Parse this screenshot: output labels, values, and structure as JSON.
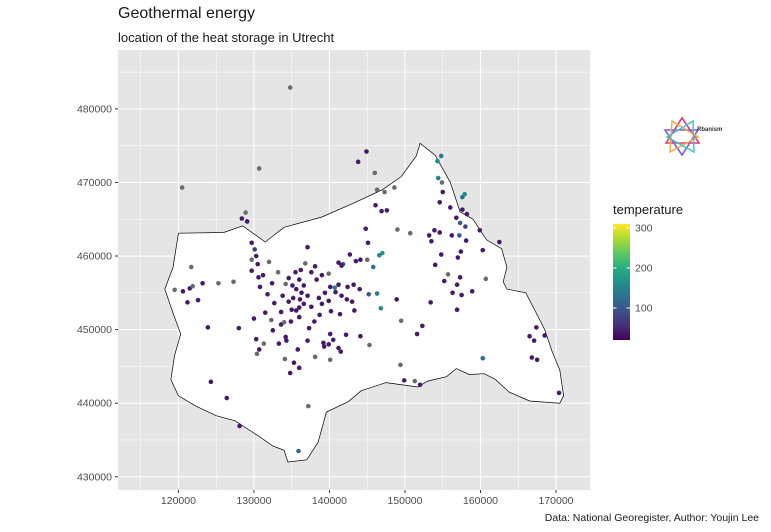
{
  "title": "Geothermal energy",
  "subtitle": "location of the heat storage in Utrecht",
  "caption": "Data: National Georegister, Author: Youjin Lee",
  "logo_text": "Rbanism",
  "colors": {
    "panel": "#e5e5e5",
    "grid": "#ffffff",
    "province_fill": "#ffffff",
    "province_outline": "#000000",
    "missing": "#6b6b6b"
  },
  "chart_data": {
    "type": "scatter",
    "xlim": [
      112000,
      174500
    ],
    "ylim": [
      428200,
      488000
    ],
    "x_ticks": [
      120000,
      130000,
      140000,
      150000,
      160000,
      170000
    ],
    "x_tick_labels": [
      "120000",
      "130000",
      "140000",
      "150000",
      "160000",
      "170000"
    ],
    "y_ticks": [
      430000,
      440000,
      450000,
      460000,
      470000,
      480000
    ],
    "y_tick_labels": [
      "430000",
      "440000",
      "450000",
      "460000",
      "470000",
      "480000"
    ],
    "grid": true,
    "legend": {
      "title": "temperature",
      "position": "right",
      "range": [
        20,
        310
      ],
      "breaks": [
        100,
        200,
        300
      ],
      "labels": [
        "100",
        "200",
        "300"
      ],
      "palette": [
        "#440154",
        "#472d7b",
        "#3b528b",
        "#2c728e",
        "#21918c",
        "#28ae80",
        "#5ec962",
        "#addc30",
        "#fde725"
      ]
    },
    "province_outline": [
      [
        120000,
        463100
      ],
      [
        126000,
        463200
      ],
      [
        128500,
        464100
      ],
      [
        131500,
        461900
      ],
      [
        134000,
        463900
      ],
      [
        139000,
        465300
      ],
      [
        143000,
        467100
      ],
      [
        147000,
        469000
      ],
      [
        149500,
        470800
      ],
      [
        151500,
        473600
      ],
      [
        152000,
        475300
      ],
      [
        154000,
        473700
      ],
      [
        156000,
        470000
      ],
      [
        157300,
        466000
      ],
      [
        159000,
        465000
      ],
      [
        160800,
        462200
      ],
      [
        162800,
        461000
      ],
      [
        163500,
        458500
      ],
      [
        163000,
        456500
      ],
      [
        163500,
        455500
      ],
      [
        166000,
        455000
      ],
      [
        167000,
        453000
      ],
      [
        168500,
        450000
      ],
      [
        169500,
        447000
      ],
      [
        170500,
        444500
      ],
      [
        171000,
        441000
      ],
      [
        170500,
        440000
      ],
      [
        166500,
        440300
      ],
      [
        163800,
        441500
      ],
      [
        162000,
        443200
      ],
      [
        160500,
        444000
      ],
      [
        158500,
        443900
      ],
      [
        156800,
        444700
      ],
      [
        155500,
        443600
      ],
      [
        153000,
        443000
      ],
      [
        151700,
        442200
      ],
      [
        147500,
        442800
      ],
      [
        144200,
        441700
      ],
      [
        142500,
        440200
      ],
      [
        139600,
        438800
      ],
      [
        138500,
        434700
      ],
      [
        137000,
        432300
      ],
      [
        134500,
        432000
      ],
      [
        134000,
        433600
      ],
      [
        132500,
        434200
      ],
      [
        130800,
        435400
      ],
      [
        127500,
        437600
      ],
      [
        125000,
        438300
      ],
      [
        122300,
        439600
      ],
      [
        120000,
        441000
      ],
      [
        119000,
        443200
      ],
      [
        119500,
        446500
      ],
      [
        120300,
        449400
      ],
      [
        119200,
        452500
      ],
      [
        118200,
        455500
      ],
      [
        119300,
        458500
      ],
      [
        120000,
        463100
      ]
    ],
    "points": [
      {
        "x": 134800,
        "y": 482900,
        "t": null
      },
      {
        "x": 137100,
        "y": 461200,
        "t": 40
      },
      {
        "x": 136200,
        "y": 458100,
        "t": 40
      },
      {
        "x": 136000,
        "y": 456800,
        "t": 40
      },
      {
        "x": 135600,
        "y": 455500,
        "t": 40
      },
      {
        "x": 136300,
        "y": 455000,
        "t": 40
      },
      {
        "x": 135200,
        "y": 454300,
        "t": 40
      },
      {
        "x": 134600,
        "y": 453800,
        "t": 40
      },
      {
        "x": 136600,
        "y": 453500,
        "t": 40
      },
      {
        "x": 135600,
        "y": 452600,
        "t": 40
      },
      {
        "x": 136000,
        "y": 451700,
        "t": 40
      },
      {
        "x": 134900,
        "y": 451100,
        "t": 40
      },
      {
        "x": 133600,
        "y": 450700,
        "t": 40
      },
      {
        "x": 134200,
        "y": 449000,
        "t": 40
      },
      {
        "x": 133300,
        "y": 448100,
        "t": 40
      },
      {
        "x": 137300,
        "y": 450200,
        "t": 40
      },
      {
        "x": 138000,
        "y": 451100,
        "t": 40
      },
      {
        "x": 138700,
        "y": 452000,
        "t": 40
      },
      {
        "x": 139400,
        "y": 455000,
        "t": 40
      },
      {
        "x": 140100,
        "y": 455800,
        "t": 40
      },
      {
        "x": 140800,
        "y": 455100,
        "t": 40
      },
      {
        "x": 141600,
        "y": 454600,
        "t": 40
      },
      {
        "x": 142400,
        "y": 455800,
        "t": 40
      },
      {
        "x": 143200,
        "y": 456100,
        "t": 40
      },
      {
        "x": 144000,
        "y": 455500,
        "t": 40
      },
      {
        "x": 141200,
        "y": 459100,
        "t": 40
      },
      {
        "x": 142700,
        "y": 460200,
        "t": 40
      },
      {
        "x": 144100,
        "y": 459500,
        "t": 40
      },
      {
        "x": 132400,
        "y": 456300,
        "t": 40
      },
      {
        "x": 131800,
        "y": 454800,
        "t": 40
      },
      {
        "x": 132700,
        "y": 453600,
        "t": 40
      },
      {
        "x": 131500,
        "y": 452300,
        "t": 40
      },
      {
        "x": 130600,
        "y": 457100,
        "t": 40
      },
      {
        "x": 129700,
        "y": 458000,
        "t": 40
      },
      {
        "x": 130300,
        "y": 460000,
        "t": 40
      },
      {
        "x": 129700,
        "y": 461800,
        "t": 40
      },
      {
        "x": 132000,
        "y": 459200,
        "t": null
      },
      {
        "x": 133200,
        "y": 457800,
        "t": null
      },
      {
        "x": 136800,
        "y": 459000,
        "t": null
      },
      {
        "x": 134200,
        "y": 456200,
        "t": null
      },
      {
        "x": 137600,
        "y": 457800,
        "t": 40
      },
      {
        "x": 138300,
        "y": 456800,
        "t": 40
      },
      {
        "x": 130700,
        "y": 447300,
        "t": 40
      },
      {
        "x": 130300,
        "y": 448700,
        "t": 40
      },
      {
        "x": 131300,
        "y": 448100,
        "t": null
      },
      {
        "x": 130400,
        "y": 446700,
        "t": null
      },
      {
        "x": 134300,
        "y": 448500,
        "t": 40
      },
      {
        "x": 135800,
        "y": 447300,
        "t": 40
      },
      {
        "x": 134100,
        "y": 446000,
        "t": null
      },
      {
        "x": 134800,
        "y": 444100,
        "t": 40
      },
      {
        "x": 136000,
        "y": 444800,
        "t": 40
      },
      {
        "x": 139200,
        "y": 448200,
        "t": 40
      },
      {
        "x": 139900,
        "y": 448000,
        "t": 40
      },
      {
        "x": 140500,
        "y": 448600,
        "t": 40
      },
      {
        "x": 142200,
        "y": 449300,
        "t": 40
      },
      {
        "x": 141200,
        "y": 447500,
        "t": 40
      },
      {
        "x": 144100,
        "y": 449100,
        "t": 40
      },
      {
        "x": 145300,
        "y": 447900,
        "t": null
      },
      {
        "x": 143300,
        "y": 452600,
        "t": 40
      },
      {
        "x": 145200,
        "y": 454800,
        "t": 100
      },
      {
        "x": 146300,
        "y": 454900,
        "t": 140
      },
      {
        "x": 146800,
        "y": 452900,
        "t": 160
      },
      {
        "x": 145000,
        "y": 459500,
        "t": null
      },
      {
        "x": 146600,
        "y": 460100,
        "t": 150
      },
      {
        "x": 147000,
        "y": 460400,
        "t": 170
      },
      {
        "x": 145800,
        "y": 458500,
        "t": 130
      },
      {
        "x": 145100,
        "y": 461800,
        "t": 40
      },
      {
        "x": 144800,
        "y": 463700,
        "t": 40
      },
      {
        "x": 143800,
        "y": 472800,
        "t": 40
      },
      {
        "x": 144900,
        "y": 474200,
        "t": 40
      },
      {
        "x": 146000,
        "y": 471300,
        "t": null
      },
      {
        "x": 146100,
        "y": 466900,
        "t": 40
      },
      {
        "x": 146900,
        "y": 466100,
        "t": 40
      },
      {
        "x": 146300,
        "y": 469000,
        "t": null
      },
      {
        "x": 147300,
        "y": 468700,
        "t": null
      },
      {
        "x": 148600,
        "y": 469300,
        "t": null
      },
      {
        "x": 147600,
        "y": 466200,
        "t": 40
      },
      {
        "x": 149000,
        "y": 463600,
        "t": null
      },
      {
        "x": 150700,
        "y": 463100,
        "t": null
      },
      {
        "x": 148900,
        "y": 454100,
        "t": 40
      },
      {
        "x": 149500,
        "y": 451200,
        "t": null
      },
      {
        "x": 151600,
        "y": 449400,
        "t": 40
      },
      {
        "x": 152300,
        "y": 450500,
        "t": 40
      },
      {
        "x": 153400,
        "y": 453700,
        "t": 40
      },
      {
        "x": 151300,
        "y": 443000,
        "t": null
      },
      {
        "x": 152000,
        "y": 442500,
        "t": 40
      },
      {
        "x": 149400,
        "y": 445200,
        "t": null
      },
      {
        "x": 149900,
        "y": 443100,
        "t": 40
      },
      {
        "x": 153200,
        "y": 462800,
        "t": 40
      },
      {
        "x": 153900,
        "y": 463500,
        "t": 40
      },
      {
        "x": 154600,
        "y": 463200,
        "t": 40
      },
      {
        "x": 154800,
        "y": 460200,
        "t": 40
      },
      {
        "x": 154000,
        "y": 458800,
        "t": 40
      },
      {
        "x": 153500,
        "y": 462000,
        "t": 40
      },
      {
        "x": 154600,
        "y": 467300,
        "t": 40
      },
      {
        "x": 155000,
        "y": 468700,
        "t": 40
      },
      {
        "x": 154400,
        "y": 470600,
        "t": 150
      },
      {
        "x": 154800,
        "y": 473600,
        "t": 140
      },
      {
        "x": 154300,
        "y": 472900,
        "t": 160
      },
      {
        "x": 154900,
        "y": 470000,
        "t": null
      },
      {
        "x": 156000,
        "y": 466600,
        "t": 40
      },
      {
        "x": 156800,
        "y": 465200,
        "t": 40
      },
      {
        "x": 157600,
        "y": 466300,
        "t": 40
      },
      {
        "x": 157600,
        "y": 468000,
        "t": 130
      },
      {
        "x": 157900,
        "y": 468400,
        "t": 160
      },
      {
        "x": 158200,
        "y": 465700,
        "t": 40
      },
      {
        "x": 158000,
        "y": 464000,
        "t": 80
      },
      {
        "x": 157300,
        "y": 464500,
        "t": 110
      },
      {
        "x": 156200,
        "y": 462800,
        "t": 40
      },
      {
        "x": 157200,
        "y": 462800,
        "t": 100
      },
      {
        "x": 158100,
        "y": 462100,
        "t": 40
      },
      {
        "x": 157000,
        "y": 459800,
        "t": 40
      },
      {
        "x": 157400,
        "y": 460600,
        "t": 40
      },
      {
        "x": 159900,
        "y": 463500,
        "t": 40
      },
      {
        "x": 160300,
        "y": 460800,
        "t": 40
      },
      {
        "x": 155700,
        "y": 457500,
        "t": null
      },
      {
        "x": 155200,
        "y": 456600,
        "t": 40
      },
      {
        "x": 156900,
        "y": 456100,
        "t": 40
      },
      {
        "x": 157300,
        "y": 457100,
        "t": 40
      },
      {
        "x": 160700,
        "y": 456900,
        "t": null
      },
      {
        "x": 158900,
        "y": 455200,
        "t": 40
      },
      {
        "x": 156300,
        "y": 455000,
        "t": 40
      },
      {
        "x": 157500,
        "y": 454700,
        "t": 40
      },
      {
        "x": 156900,
        "y": 452700,
        "t": 40
      },
      {
        "x": 162500,
        "y": 461900,
        "t": 40
      },
      {
        "x": 160300,
        "y": 446100,
        "t": 120
      },
      {
        "x": 166500,
        "y": 449100,
        "t": 40
      },
      {
        "x": 167400,
        "y": 450300,
        "t": 40
      },
      {
        "x": 166800,
        "y": 446200,
        "t": 40
      },
      {
        "x": 167100,
        "y": 448500,
        "t": 40
      },
      {
        "x": 168500,
        "y": 449200,
        "t": 40
      },
      {
        "x": 167500,
        "y": 445900,
        "t": 40
      },
      {
        "x": 170400,
        "y": 441400,
        "t": 40
      },
      {
        "x": 126400,
        "y": 440700,
        "t": 40
      },
      {
        "x": 124300,
        "y": 442900,
        "t": 40
      },
      {
        "x": 129100,
        "y": 464700,
        "t": 40
      },
      {
        "x": 128400,
        "y": 465100,
        "t": 40
      },
      {
        "x": 128900,
        "y": 465900,
        "t": null
      },
      {
        "x": 130700,
        "y": 471900,
        "t": null
      },
      {
        "x": 123900,
        "y": 450300,
        "t": 40
      },
      {
        "x": 123200,
        "y": 456300,
        "t": 40
      },
      {
        "x": 121500,
        "y": 455600,
        "t": 40
      },
      {
        "x": 120600,
        "y": 455200,
        "t": 40
      },
      {
        "x": 119500,
        "y": 455400,
        "t": null
      },
      {
        "x": 121200,
        "y": 453700,
        "t": 40
      },
      {
        "x": 121900,
        "y": 455900,
        "t": null
      },
      {
        "x": 125300,
        "y": 456300,
        "t": null
      },
      {
        "x": 120500,
        "y": 469300,
        "t": null
      },
      {
        "x": 122600,
        "y": 454000,
        "t": 40
      },
      {
        "x": 121700,
        "y": 458500,
        "t": null
      },
      {
        "x": 128000,
        "y": 450200,
        "t": 40
      },
      {
        "x": 127300,
        "y": 456500,
        "t": null
      },
      {
        "x": 130800,
        "y": 455800,
        "t": 40
      },
      {
        "x": 133800,
        "y": 454600,
        "t": 40
      },
      {
        "x": 135100,
        "y": 456000,
        "t": 40
      },
      {
        "x": 136600,
        "y": 456000,
        "t": 40
      },
      {
        "x": 136100,
        "y": 454100,
        "t": 40
      },
      {
        "x": 137600,
        "y": 453100,
        "t": 40
      },
      {
        "x": 136000,
        "y": 453000,
        "t": 40
      },
      {
        "x": 135000,
        "y": 452700,
        "t": 40
      },
      {
        "x": 137100,
        "y": 454600,
        "t": 40
      },
      {
        "x": 139000,
        "y": 453500,
        "t": 40
      },
      {
        "x": 138600,
        "y": 454300,
        "t": 40
      },
      {
        "x": 139900,
        "y": 453900,
        "t": 40
      },
      {
        "x": 141200,
        "y": 456100,
        "t": 40
      },
      {
        "x": 142300,
        "y": 454100,
        "t": 40
      },
      {
        "x": 143000,
        "y": 453800,
        "t": 40
      },
      {
        "x": 140200,
        "y": 452500,
        "t": 40
      },
      {
        "x": 141400,
        "y": 452100,
        "t": 40
      },
      {
        "x": 133600,
        "y": 452400,
        "t": 40
      },
      {
        "x": 134000,
        "y": 451000,
        "t": null
      },
      {
        "x": 132500,
        "y": 449900,
        "t": 40
      },
      {
        "x": 130500,
        "y": 458900,
        "t": 40
      },
      {
        "x": 131200,
        "y": 457400,
        "t": 40
      },
      {
        "x": 134600,
        "y": 457000,
        "t": 40
      },
      {
        "x": 135500,
        "y": 457800,
        "t": 40
      },
      {
        "x": 139900,
        "y": 457600,
        "t": null
      },
      {
        "x": 141800,
        "y": 458900,
        "t": 100
      },
      {
        "x": 143500,
        "y": 459300,
        "t": 40
      },
      {
        "x": 140700,
        "y": 455700,
        "t": 140
      },
      {
        "x": 138100,
        "y": 458600,
        "t": 40
      },
      {
        "x": 139000,
        "y": 457400,
        "t": 40
      },
      {
        "x": 141600,
        "y": 458700,
        "t": 40
      },
      {
        "x": 132300,
        "y": 451300,
        "t": null
      },
      {
        "x": 129700,
        "y": 459500,
        "t": null
      },
      {
        "x": 140100,
        "y": 449400,
        "t": 40
      },
      {
        "x": 139300,
        "y": 447700,
        "t": 40
      },
      {
        "x": 137100,
        "y": 448500,
        "t": 40
      },
      {
        "x": 138100,
        "y": 446300,
        "t": null
      },
      {
        "x": 141500,
        "y": 447000,
        "t": 40
      },
      {
        "x": 140100,
        "y": 445900,
        "t": null
      },
      {
        "x": 135300,
        "y": 445500,
        "t": 40
      },
      {
        "x": 137200,
        "y": 439600,
        "t": null
      },
      {
        "x": 130100,
        "y": 460900,
        "t": 70
      },
      {
        "x": 135900,
        "y": 433500,
        "t": 120
      },
      {
        "x": 128100,
        "y": 436900,
        "t": 40
      },
      {
        "x": 130000,
        "y": 451500,
        "t": 40
      }
    ]
  }
}
